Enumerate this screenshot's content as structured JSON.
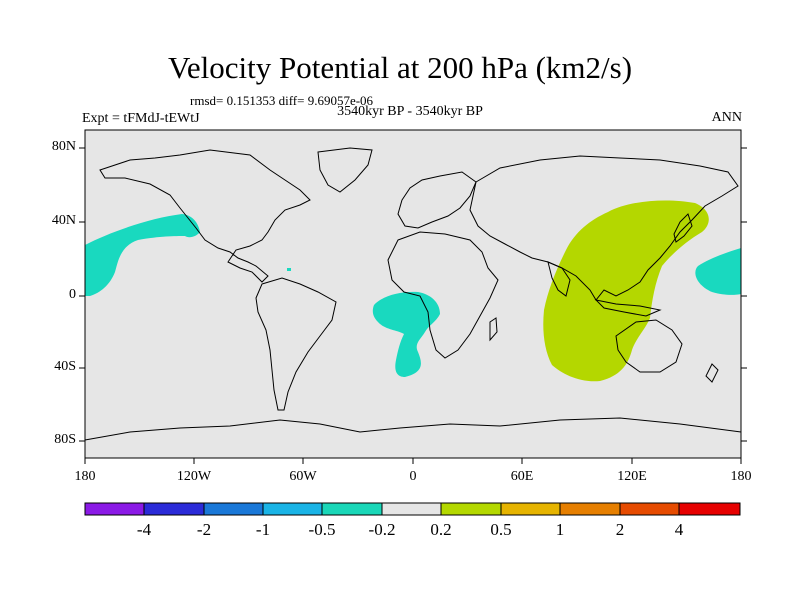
{
  "title": "Velocity Potential at 200 hPa (km2/s)",
  "stats": "rmsd= 0.151353 diff= 9.69057e-06",
  "experiment": "Expt = tFMdJ-tEWtJ",
  "period": "3540kyr BP - 3540kyr BP",
  "season": "ANN",
  "lat_labels": [
    "80N",
    "40N",
    "0",
    "40S",
    "80S"
  ],
  "lon_labels": [
    "180",
    "120W",
    "60W",
    "0",
    "60E",
    "120E",
    "180"
  ],
  "colorbar": {
    "labels": [
      "-4",
      "-2",
      "-1",
      "-0.5",
      "-0.2",
      "0.2",
      "0.5",
      "1",
      "2",
      "4"
    ],
    "colors": [
      "#8b1ae6",
      "#2b2bd8",
      "#1a78d8",
      "#1ab4e6",
      "#1ad7b8",
      "#e6e6e6",
      "#b4d800",
      "#e6b400",
      "#e67f00",
      "#e64b00",
      "#e60000"
    ]
  },
  "colors": {
    "ocean_land_bg": "#e6e6e6",
    "negative_anomaly": "#19d9bf",
    "positive_anomaly": "#b4d700"
  }
}
